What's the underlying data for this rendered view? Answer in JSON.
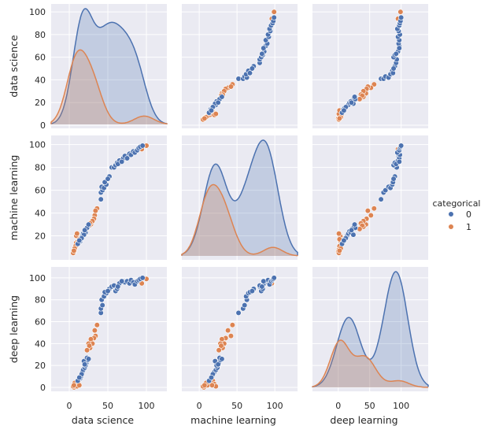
{
  "chart_data": {
    "type": "scatter",
    "layout": "pairplot",
    "diagonal": "kde",
    "grid": true,
    "variables": [
      "data science",
      "machine learning",
      "deep learning"
    ],
    "axis_ranges": {
      "data science": [
        -23.5,
        126.5
      ],
      "machine learning": [
        -23,
        130
      ],
      "deep learning": [
        -41,
        143
      ]
    },
    "y_ranges": {
      "data science": [
        -2.8,
        107
      ],
      "machine learning": [
        -1,
        108
      ],
      "deep learning": [
        -3.6,
        110
      ]
    },
    "x_ticks": {
      "data science": [
        "0",
        "50",
        "100"
      ],
      "machine learning": [
        "0",
        "50",
        "100"
      ],
      "deep learning": [
        "0",
        "50",
        "100"
      ]
    },
    "y_ticks": {
      "data science": [
        "0",
        "20",
        "40",
        "60",
        "80",
        "100"
      ],
      "machine learning": [
        "20",
        "40",
        "60",
        "80",
        "100"
      ],
      "deep learning": [
        "0",
        "20",
        "40",
        "60",
        "80",
        "100"
      ]
    },
    "legend": {
      "title": "categorical",
      "placement": "right",
      "entries": [
        {
          "label": "0",
          "color": "#4c72b0"
        },
        {
          "label": "1",
          "color": "#dd8452"
        }
      ]
    },
    "colors": {
      "background": "#eaeaf2",
      "grid": "#ffffff",
      "0": "#4c72b0",
      "1": "#dd8452"
    },
    "columns": [
      "data science",
      "machine learning",
      "deep learning",
      "categorical"
    ],
    "points": [
      [
        100,
        99,
        99,
        1
      ],
      [
        94,
        96,
        95,
        1
      ],
      [
        36,
        44,
        57,
        1
      ],
      [
        33,
        38,
        52,
        1
      ],
      [
        34,
        42,
        47,
        1
      ],
      [
        32,
        35,
        45,
        1
      ],
      [
        28,
        30,
        44,
        1
      ],
      [
        30,
        33,
        40,
        1
      ],
      [
        27,
        31,
        36,
        1
      ],
      [
        25,
        28,
        40,
        1
      ],
      [
        26,
        29,
        38,
        1
      ],
      [
        23,
        26,
        34,
        1
      ],
      [
        10,
        12,
        3,
        1
      ],
      [
        8,
        10,
        2,
        1
      ],
      [
        9,
        14,
        5,
        1
      ],
      [
        7,
        8,
        1,
        1
      ],
      [
        6,
        6,
        0,
        1
      ],
      [
        11,
        15,
        4,
        1
      ],
      [
        12,
        18,
        6,
        1
      ],
      [
        8,
        11,
        2,
        1
      ],
      [
        9,
        20,
        3,
        1
      ],
      [
        10,
        22,
        1,
        1
      ],
      [
        7,
        9,
        4,
        1
      ],
      [
        5,
        5,
        1,
        1
      ],
      [
        13,
        17,
        2,
        1
      ],
      [
        6,
        7,
        2,
        1
      ],
      [
        14,
        15,
        8,
        0
      ],
      [
        15,
        17,
        10,
        0
      ],
      [
        17,
        20,
        14,
        0
      ],
      [
        18,
        22,
        16,
        0
      ],
      [
        20,
        24,
        18,
        0
      ],
      [
        22,
        26,
        22,
        0
      ],
      [
        24,
        28,
        25,
        0
      ],
      [
        21,
        23,
        20,
        0
      ],
      [
        19,
        21,
        24,
        0
      ],
      [
        16,
        18,
        12,
        0
      ],
      [
        12,
        14,
        7,
        0
      ],
      [
        23,
        27,
        27,
        0
      ],
      [
        11,
        13,
        6,
        0
      ],
      [
        13,
        16,
        9,
        0
      ],
      [
        20,
        25,
        21,
        0
      ],
      [
        25,
        30,
        26,
        0
      ],
      [
        41,
        52,
        68,
        0
      ],
      [
        41,
        58,
        72,
        0
      ],
      [
        43,
        60,
        75,
        0
      ],
      [
        42,
        63,
        80,
        0
      ],
      [
        45,
        62,
        83,
        0
      ],
      [
        48,
        65,
        86,
        0
      ],
      [
        52,
        72,
        90,
        0
      ],
      [
        55,
        80,
        92,
        0
      ],
      [
        58,
        80,
        93,
        0
      ],
      [
        60,
        82,
        88,
        0
      ],
      [
        62,
        84,
        90,
        0
      ],
      [
        65,
        86,
        95,
        0
      ],
      [
        70,
        88,
        97,
        0
      ],
      [
        72,
        90,
        96,
        0
      ],
      [
        75,
        88,
        97,
        0
      ],
      [
        78,
        92,
        95,
        0
      ],
      [
        80,
        91,
        98,
        0
      ],
      [
        83,
        94,
        96,
        0
      ],
      [
        85,
        93,
        94,
        0
      ],
      [
        88,
        95,
        97,
        0
      ],
      [
        90,
        97,
        98,
        0
      ],
      [
        92,
        98,
        99,
        0
      ],
      [
        95,
        99,
        100,
        0
      ],
      [
        46,
        67,
        87,
        0
      ],
      [
        50,
        70,
        88,
        0
      ],
      [
        63,
        83,
        92,
        0
      ],
      [
        68,
        85,
        97,
        0
      ]
    ]
  }
}
